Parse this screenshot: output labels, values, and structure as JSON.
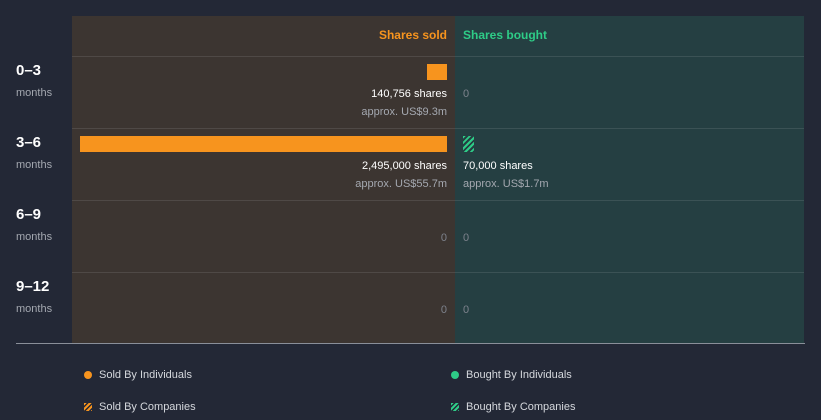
{
  "chart_data": {
    "type": "bar",
    "headers": {
      "sold": "Shares sold",
      "bought": "Shares bought"
    },
    "categories": [
      {
        "label": "0–3",
        "sub": "months"
      },
      {
        "label": "3–6",
        "sub": "months"
      },
      {
        "label": "6–9",
        "sub": "months"
      },
      {
        "label": "9–12",
        "sub": "months"
      }
    ],
    "series": [
      {
        "name": "Shares sold",
        "values": [
          140756,
          2495000,
          0,
          0
        ],
        "shares_text": [
          "140,756 shares",
          "2,495,000 shares",
          "0",
          "0"
        ],
        "approx_text": [
          "approx. US$9.3m",
          "approx. US$55.7m",
          "",
          ""
        ]
      },
      {
        "name": "Shares bought",
        "values": [
          0,
          70000,
          0,
          0
        ],
        "shares_text": [
          "0",
          "70,000 shares",
          "0",
          "0"
        ],
        "approx_text": [
          "",
          "approx. US$1.7m",
          "",
          ""
        ]
      }
    ],
    "legend": [
      {
        "label": "Sold By Individuals",
        "marker": "dot",
        "color": "#f7941e"
      },
      {
        "label": "Bought By Individuals",
        "marker": "dot",
        "color": "#2ecc87"
      },
      {
        "label": "Sold By Companies",
        "marker": "hatch",
        "color": "#f7941e"
      },
      {
        "label": "Bought By Companies",
        "marker": "hatch",
        "color": "#2ecc87"
      }
    ],
    "colors": {
      "sold": "#f7941e",
      "bought": "#2ecc87"
    }
  }
}
